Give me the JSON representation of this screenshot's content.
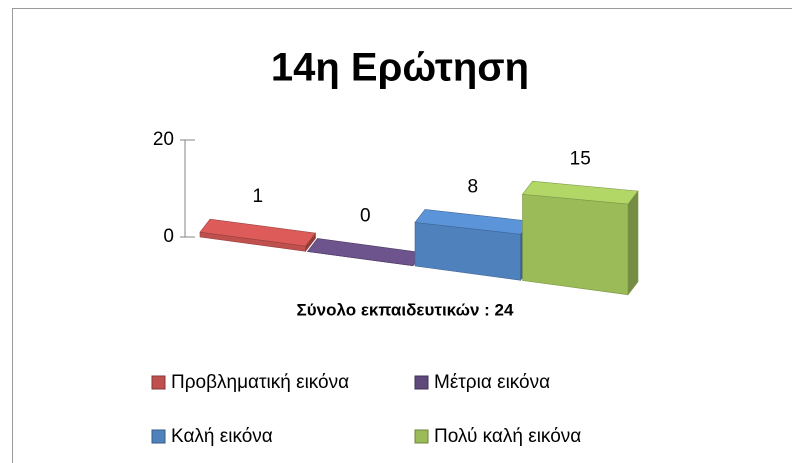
{
  "chart_data": {
    "type": "bar3d",
    "title": "14η Ερώτηση",
    "categories": [
      "Σύνολο εκπαιδευτικών : 24"
    ],
    "series": [
      {
        "name": "Προβληματική εικόνα",
        "color": "#c0504d",
        "values": [
          1
        ]
      },
      {
        "name": "Μέτρια εικόνα",
        "color": "#5f497a",
        "values": [
          0
        ]
      },
      {
        "name": "Καλή εικόνα",
        "color": "#4f81bd",
        "values": [
          8
        ]
      },
      {
        "name": "Πολύ καλή εικόνα",
        "color": "#9bbb59",
        "values": [
          15
        ]
      }
    ],
    "ylim": [
      0,
      20
    ],
    "yticks": [
      0,
      20
    ],
    "grid": false,
    "legend": "bottom"
  }
}
